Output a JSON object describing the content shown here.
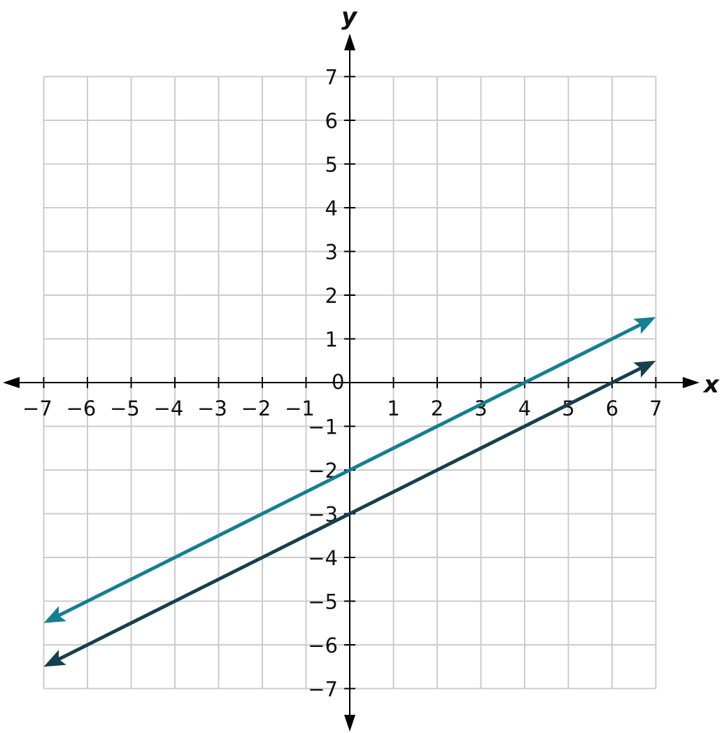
{
  "chart_data": {
    "type": "line",
    "title": "",
    "xlabel": "x",
    "ylabel": "y",
    "xlim": [
      -7,
      7
    ],
    "ylim": [
      -7,
      7
    ],
    "grid": true,
    "x_ticks": [
      "−7",
      "−6",
      "−5",
      "−4",
      "−3",
      "−2",
      "−1",
      "1",
      "2",
      "3",
      "4",
      "5",
      "6",
      "7"
    ],
    "y_ticks": [
      "7",
      "6",
      "5",
      "4",
      "3",
      "2",
      "1",
      "−1",
      "−2",
      "−3",
      "−4",
      "−5",
      "−6",
      "−7"
    ],
    "origin_label": "0",
    "series": [
      {
        "points": [
          [
            -7,
            -5.5
          ],
          [
            7,
            1.5
          ]
        ],
        "equation_slope": 0.5,
        "equation_intercept": -2,
        "color": "#137f91",
        "arrows": "both"
      },
      {
        "points": [
          [
            -7,
            -6.5
          ],
          [
            7,
            0.5
          ]
        ],
        "equation_slope": 0.5,
        "equation_intercept": -3,
        "color": "#163f4f",
        "arrows": "both"
      }
    ],
    "grid_color": "#cccccc",
    "axis_color": "#000000"
  }
}
